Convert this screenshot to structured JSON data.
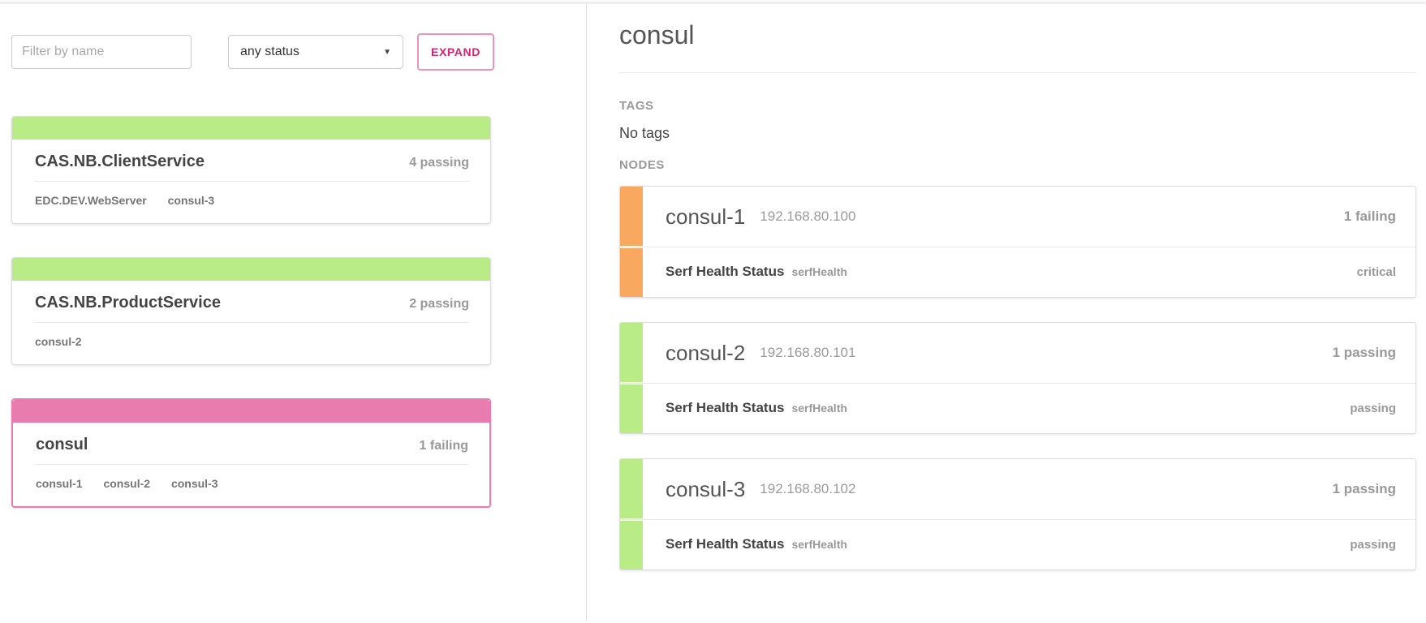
{
  "colors": {
    "passing_green": "#b9ec86",
    "failing_pink": "#e87cae",
    "critical_orange": "#f8a85f",
    "accent_magenta": "#d6246e",
    "accent_border_pink": "#f191bb"
  },
  "toolbar": {
    "filter_placeholder": "Filter by name",
    "status_filter_value": "any status",
    "expand_label": "EXPAND",
    "dropdown_arrow": "▼"
  },
  "services": [
    {
      "name": "CAS.NB.ClientService",
      "status": "4 passing",
      "tags": [
        "EDC.DEV.WebServer",
        "consul-3"
      ]
    },
    {
      "name": "CAS.NB.ProductService",
      "status": "2 passing",
      "tags": [
        "consul-2"
      ]
    },
    {
      "name": "consul",
      "status": "1 failing",
      "tags": [
        "consul-1",
        "consul-2",
        "consul-3"
      ]
    }
  ],
  "detail": {
    "title": "consul",
    "tags_heading": "TAGS",
    "tags_empty": "No tags",
    "nodes_heading": "NODES",
    "nodes": [
      {
        "name": "consul-1",
        "address": "192.168.80.100",
        "status": "1 failing",
        "check": {
          "name": "Serf Health Status",
          "id": "serfHealth",
          "output": "critical"
        }
      },
      {
        "name": "consul-2",
        "address": "192.168.80.101",
        "status": "1 passing",
        "check": {
          "name": "Serf Health Status",
          "id": "serfHealth",
          "output": "passing"
        }
      },
      {
        "name": "consul-3",
        "address": "192.168.80.102",
        "status": "1 passing",
        "check": {
          "name": "Serf Health Status",
          "id": "serfHealth",
          "output": "passing"
        }
      }
    ]
  }
}
